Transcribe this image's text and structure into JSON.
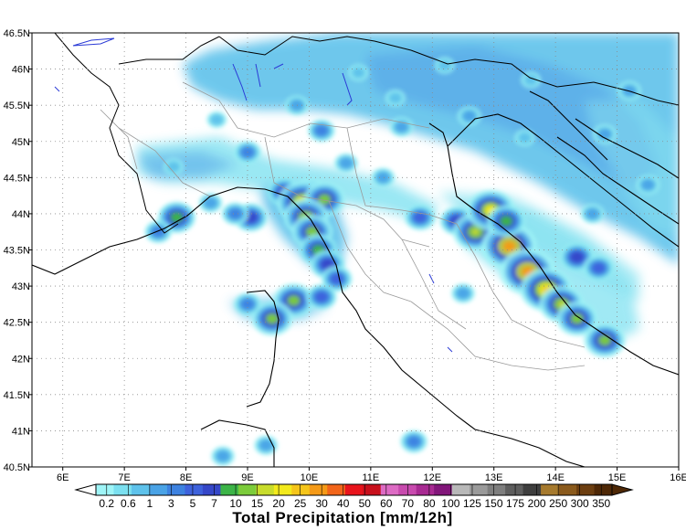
{
  "map": {
    "lon_range": [
      5.5,
      16
    ],
    "lat_range": [
      40.5,
      46.5
    ],
    "lon_ticks": [
      {
        "value": 6,
        "label": "6E"
      },
      {
        "value": 7,
        "label": "7E"
      },
      {
        "value": 8,
        "label": "8E"
      },
      {
        "value": 9,
        "label": "9E"
      },
      {
        "value": 10,
        "label": "10E"
      },
      {
        "value": 11,
        "label": "11E"
      },
      {
        "value": 12,
        "label": "12E"
      },
      {
        "value": 13,
        "label": "13E"
      },
      {
        "value": 14,
        "label": "14E"
      },
      {
        "value": 15,
        "label": "15E"
      },
      {
        "value": 16,
        "label": "16E"
      }
    ],
    "lat_ticks": [
      {
        "value": 46.5,
        "label": "46.5N"
      },
      {
        "value": 46,
        "label": "46N"
      },
      {
        "value": 45.5,
        "label": "45.5N"
      },
      {
        "value": 45,
        "label": "45N"
      },
      {
        "value": 44.5,
        "label": "44.5N"
      },
      {
        "value": 44,
        "label": "44N"
      },
      {
        "value": 43.5,
        "label": "43.5N"
      },
      {
        "value": 43,
        "label": "43N"
      },
      {
        "value": 42.5,
        "label": "42.5N"
      },
      {
        "value": 42,
        "label": "42N"
      },
      {
        "value": 41.5,
        "label": "41.5N"
      },
      {
        "value": 41,
        "label": "41N"
      },
      {
        "value": 40.5,
        "label": "40.5N"
      }
    ],
    "grid": "dotted",
    "colors": {
      "coast": "#000000",
      "lakes": "#2b3bd6",
      "regions": "#9a9a9a",
      "grid": "#8a8a8a"
    }
  },
  "precipitation_cells": [
    {
      "lon": 12.2,
      "lat": 46.05,
      "level": 2
    },
    {
      "lon": 10.8,
      "lat": 45.95,
      "level": 2
    },
    {
      "lon": 13.6,
      "lat": 45.85,
      "level": 2
    },
    {
      "lon": 15.2,
      "lat": 45.7,
      "level": 3
    },
    {
      "lon": 11.4,
      "lat": 45.6,
      "level": 2
    },
    {
      "lon": 9.8,
      "lat": 45.5,
      "level": 3
    },
    {
      "lon": 8.5,
      "lat": 45.3,
      "level": 2
    },
    {
      "lon": 10.2,
      "lat": 45.15,
      "level": 4
    },
    {
      "lon": 11.5,
      "lat": 45.2,
      "level": 3
    },
    {
      "lon": 12.6,
      "lat": 45.35,
      "level": 3
    },
    {
      "lon": 7.8,
      "lat": 44.65,
      "level": 2
    },
    {
      "lon": 9.0,
      "lat": 44.85,
      "level": 4
    },
    {
      "lon": 10.6,
      "lat": 44.7,
      "level": 3
    },
    {
      "lon": 13.5,
      "lat": 45.05,
      "level": 2
    },
    {
      "lon": 14.8,
      "lat": 45.1,
      "level": 3
    },
    {
      "lon": 15.5,
      "lat": 44.4,
      "level": 3
    },
    {
      "lon": 14.6,
      "lat": 44.0,
      "level": 3
    },
    {
      "lon": 11.2,
      "lat": 44.5,
      "level": 3
    },
    {
      "lon": 9.6,
      "lat": 44.3,
      "level": 6
    },
    {
      "lon": 10.0,
      "lat": 44.25,
      "level": 8
    },
    {
      "lon": 9.9,
      "lat": 44.15,
      "level": 11
    },
    {
      "lon": 10.25,
      "lat": 44.2,
      "level": 8
    },
    {
      "lon": 9.95,
      "lat": 43.95,
      "level": 9
    },
    {
      "lon": 10.05,
      "lat": 43.75,
      "level": 8
    },
    {
      "lon": 10.15,
      "lat": 43.5,
      "level": 7
    },
    {
      "lon": 10.3,
      "lat": 43.3,
      "level": 6
    },
    {
      "lon": 10.45,
      "lat": 43.1,
      "level": 5
    },
    {
      "lon": 9.05,
      "lat": 43.95,
      "level": 6
    },
    {
      "lon": 7.85,
      "lat": 43.95,
      "level": 7
    },
    {
      "lon": 7.55,
      "lat": 43.75,
      "level": 4
    },
    {
      "lon": 9.75,
      "lat": 42.8,
      "level": 8
    },
    {
      "lon": 9.4,
      "lat": 42.55,
      "level": 8
    },
    {
      "lon": 9.0,
      "lat": 42.75,
      "level": 4
    },
    {
      "lon": 10.2,
      "lat": 42.85,
      "level": 5
    },
    {
      "lon": 11.8,
      "lat": 43.95,
      "level": 5
    },
    {
      "lon": 12.4,
      "lat": 43.9,
      "level": 6
    },
    {
      "lon": 12.7,
      "lat": 43.75,
      "level": 9
    },
    {
      "lon": 12.95,
      "lat": 44.05,
      "level": 10
    },
    {
      "lon": 13.25,
      "lat": 43.55,
      "level": 12
    },
    {
      "lon": 13.55,
      "lat": 43.2,
      "level": 12
    },
    {
      "lon": 13.85,
      "lat": 42.95,
      "level": 11
    },
    {
      "lon": 14.1,
      "lat": 42.75,
      "level": 9
    },
    {
      "lon": 14.35,
      "lat": 42.55,
      "level": 8
    },
    {
      "lon": 14.8,
      "lat": 42.25,
      "level": 8
    },
    {
      "lon": 14.35,
      "lat": 43.4,
      "level": 6
    },
    {
      "lon": 14.7,
      "lat": 43.25,
      "level": 5
    },
    {
      "lon": 13.2,
      "lat": 43.9,
      "level": 7
    },
    {
      "lon": 12.5,
      "lat": 42.9,
      "level": 3
    },
    {
      "lon": 11.7,
      "lat": 40.85,
      "level": 4
    },
    {
      "lon": 9.3,
      "lat": 40.8,
      "level": 3
    },
    {
      "lon": 8.6,
      "lat": 40.65,
      "level": 3
    },
    {
      "lon": 8.4,
      "lat": 44.15,
      "level": 3
    },
    {
      "lon": 8.8,
      "lat": 44.0,
      "level": 4
    }
  ],
  "colorbar": {
    "colors": [
      "#9ff5f7",
      "#7be0f0",
      "#5ec2eb",
      "#4aa3e6",
      "#3d82e0",
      "#3e62dc",
      "#3547c8",
      "#3cb447",
      "#7ccc3b",
      "#c8dc2c",
      "#f3ea1c",
      "#f5c51a",
      "#f59a17",
      "#f2651a",
      "#e8141c",
      "#c8101c",
      "#dd6bc4",
      "#c84aae",
      "#a82a92",
      "#82167a",
      "#b8b8b8",
      "#9a9a9a",
      "#7e7e7e",
      "#5e5e5e",
      "#3e3e3e",
      "#a67a2e",
      "#8a5a1c",
      "#6c3e10",
      "#4e2806"
    ],
    "labels": [
      "0.2",
      "0.6",
      "1",
      "3",
      "5",
      "7",
      "10",
      "15",
      "20",
      "25",
      "30",
      "40",
      "50",
      "60",
      "70",
      "80",
      "100",
      "125",
      "150",
      "175",
      "200",
      "250",
      "300",
      "350"
    ],
    "title": "Total Precipitation [mm/12h]"
  }
}
